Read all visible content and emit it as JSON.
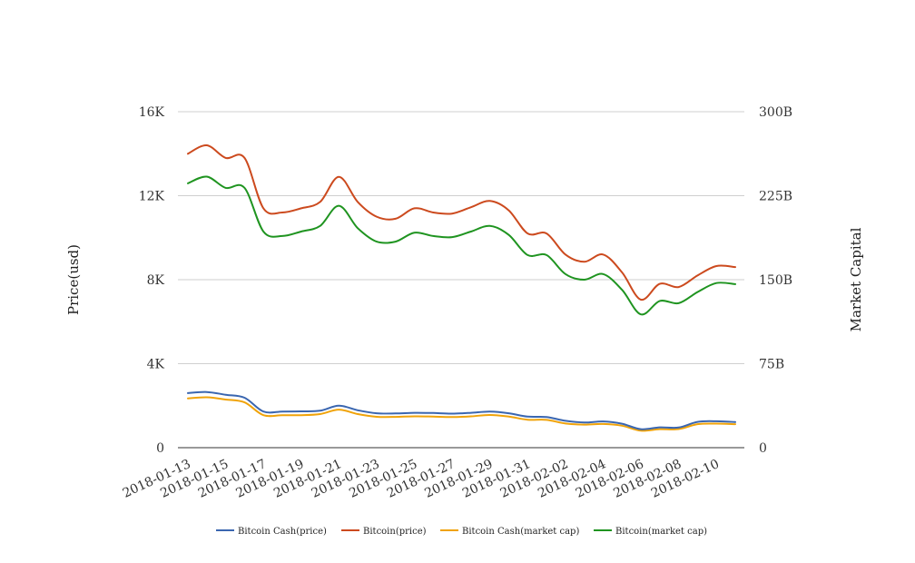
{
  "chart_data": {
    "type": "line",
    "title": "",
    "ylabel": "Price(usd)",
    "y2label": "Market Capital",
    "ylim": [
      0,
      16000
    ],
    "y2lim": [
      0,
      300000000000
    ],
    "yticks": [
      "0",
      "4K",
      "8K",
      "12K",
      "16K"
    ],
    "y2ticks": [
      "0",
      "75B",
      "150B",
      "225B",
      "300B"
    ],
    "grid": true,
    "legend_position": "bottom",
    "x": [
      "2018-01-13",
      "2018-01-14",
      "2018-01-15",
      "2018-01-16",
      "2018-01-17",
      "2018-01-18",
      "2018-01-19",
      "2018-01-20",
      "2018-01-21",
      "2018-01-22",
      "2018-01-23",
      "2018-01-24",
      "2018-01-25",
      "2018-01-26",
      "2018-01-27",
      "2018-01-28",
      "2018-01-29",
      "2018-01-30",
      "2018-01-31",
      "2018-02-01",
      "2018-02-02",
      "2018-02-03",
      "2018-02-04",
      "2018-02-05",
      "2018-02-06",
      "2018-02-07",
      "2018-02-08",
      "2018-02-09",
      "2018-02-10",
      "2018-02-11"
    ],
    "xticks": [
      "2018-01-13",
      "2018-01-15",
      "2018-01-17",
      "2018-01-19",
      "2018-01-21",
      "2018-01-23",
      "2018-01-25",
      "2018-01-27",
      "2018-01-29",
      "2018-01-31",
      "2018-02-02",
      "2018-02-04",
      "2018-02-06",
      "2018-02-08",
      "2018-02-10"
    ],
    "series": [
      {
        "name": "Bitcoin Cash(price)",
        "axis": "left",
        "color": "#3a66b0",
        "values": [
          2600,
          2650,
          2520,
          2380,
          1720,
          1720,
          1730,
          1760,
          2000,
          1780,
          1640,
          1630,
          1660,
          1650,
          1620,
          1660,
          1720,
          1640,
          1480,
          1460,
          1280,
          1200,
          1250,
          1140,
          880,
          970,
          960,
          1230,
          1260,
          1220
        ]
      },
      {
        "name": "Bitcoin(price)",
        "axis": "left",
        "color": "#cc4a1e",
        "values": [
          14000,
          14400,
          13800,
          13800,
          11400,
          11200,
          11400,
          11700,
          12900,
          11700,
          11000,
          10900,
          11400,
          11200,
          11150,
          11450,
          11750,
          11300,
          10200,
          10200,
          9200,
          8850,
          9200,
          8350,
          7050,
          7800,
          7650,
          8200,
          8650,
          8600
        ]
      },
      {
        "name": "Bitcoin Cash(market cap)",
        "axis": "right",
        "color": "#f0a30a",
        "values": [
          44000000000,
          45000000000,
          43000000000,
          40500000000,
          29000000000,
          29000000000,
          29000000000,
          30000000000,
          34000000000,
          30000000000,
          27600000000,
          27500000000,
          28000000000,
          27800000000,
          27300000000,
          28000000000,
          29200000000,
          27800000000,
          25000000000,
          24800000000,
          21600000000,
          20600000000,
          21200000000,
          19600000000,
          15200000000,
          16500000000,
          16600000000,
          21000000000,
          21500000000,
          21000000000
        ]
      },
      {
        "name": "Bitcoin(market cap)",
        "axis": "right",
        "color": "#1f9420",
        "values": [
          236000000000,
          242000000000,
          232000000000,
          232000000000,
          193000000000,
          189000000000,
          193000000000,
          198000000000,
          216000000000,
          196000000000,
          184000000000,
          184000000000,
          192000000000,
          189000000000,
          188000000000,
          193000000000,
          198000000000,
          190000000000,
          172000000000,
          172000000000,
          155000000000,
          150000000000,
          155000000000,
          141000000000,
          119000000000,
          131000000000,
          129000000000,
          139000000000,
          147000000000,
          146000000000
        ]
      }
    ]
  }
}
